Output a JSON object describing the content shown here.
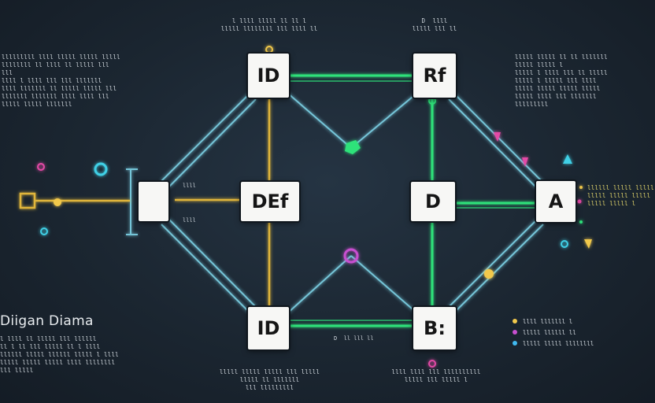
{
  "diagram": {
    "title": "Diigan Diama",
    "nodes": {
      "top_left": "ID",
      "top_right": "Rf",
      "center": "DEf",
      "mid_right": "D",
      "right": "A",
      "bottom_left": "ID",
      "bottom_right": "B:"
    },
    "edge_labels": {
      "bottom_mid": "D  ll lll ll"
    },
    "notes": {
      "top_center": "l llll lllll ll ll l\nlllll llllllll lll llll ll",
      "top_right": "D  llll\nlllll lll ll",
      "left_upper": "lllllllll llll lllll lllll  lllll\nllllllll ll llll ll lllll lll\nlll\nllll l llll lll lll lllllll\nllll lllllll ll lllll lllll lll\nlllllll lllllll llll llll lll\nlllll lllll lllllll",
      "right_upper": "lllll lllll ll ll lllllll\nlllll lllll l\nlllll l llll lll ll lllll\nlllll l lllll lll llll\nlllll lllll lllll lllll\nlllll llll lll lllllll\nlllllllll",
      "left_lower": "l llll ll lllll lll llllll\nll l ll lll  lllll ll l llll\nllllll lllll llllll lllll l llll\nlllll lllll lllll llll llllllll\nlll lllll",
      "bottom_left": "lllll lllll lllll lll lllll\nlllll ll lllllll\nlll lllllllll",
      "bottom_right": "llll llll lll llllllllll\nlllll lll lllll l",
      "right_side": "llllll lllll lllll\nlllll lllll lllll\nlllll lllll l"
    },
    "legend": [
      {
        "label": "llll lllllll l",
        "color": "#f2c94c"
      },
      {
        "label": "lllll llllll ll",
        "color": "#c84fd0"
      },
      {
        "label": "lllll lllll llllllll",
        "color": "#40b9f0"
      }
    ],
    "side_labels": {
      "left_of_center_top": "llll",
      "left_of_center_bottom": "llll"
    },
    "colors": {
      "background": "#1b2631",
      "wire_blue": "#7fd6ea",
      "wire_green": "#2ee27a",
      "wire_yellow": "#e0b53a",
      "wire_purple": "#a86be0",
      "accent_pink": "#e44aa6",
      "accent_cyan": "#3fd0e6"
    }
  }
}
